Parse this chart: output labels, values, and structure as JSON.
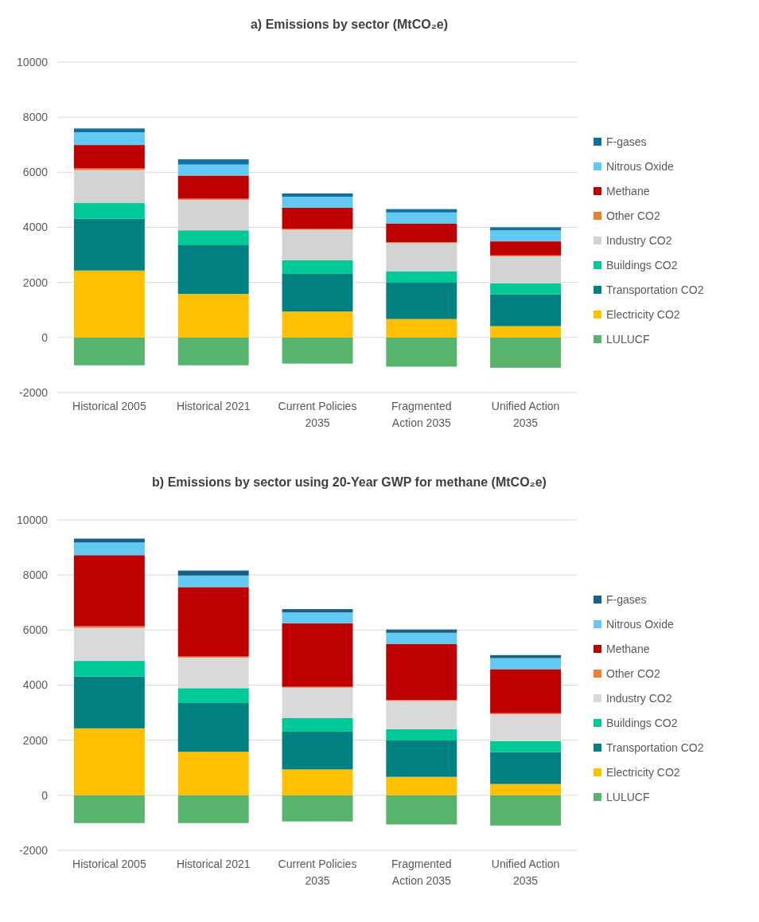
{
  "chart_data": [
    {
      "type": "bar",
      "title": "a) Emissions by sector (MtCO₂e)",
      "stacked": true,
      "grid": "y",
      "legend": "right",
      "categories": [
        "Historical 2005",
        "Historical 2021",
        "Current Policies 2035",
        "Fragmented Action 2035",
        "Unified Action 2035"
      ],
      "ylim": [
        -2000,
        10000
      ],
      "yticks": [
        -2000,
        0,
        2000,
        4000,
        6000,
        8000,
        10000
      ],
      "series": [
        {
          "name": "LULUCF",
          "color": "#58b36c",
          "values": [
            -1010,
            -1010,
            -950,
            -1060,
            -1100
          ]
        },
        {
          "name": "Electricity CO2",
          "color": "#ffc000",
          "values": [
            2430,
            1580,
            940,
            670,
            410
          ]
        },
        {
          "name": "Transportation CO2",
          "color": "#008080",
          "values": [
            1880,
            1770,
            1370,
            1320,
            1160
          ]
        },
        {
          "name": "Buildings CO2",
          "color": "#00c997",
          "values": [
            570,
            540,
            490,
            410,
            400
          ]
        },
        {
          "name": "Industry CO2",
          "color": "#d3d3d3",
          "values": [
            1200,
            1110,
            1110,
            1030,
            980
          ]
        },
        {
          "name": "Other CO2",
          "color": "#ed7d31",
          "values": [
            60,
            40,
            30,
            30,
            30
          ]
        },
        {
          "name": "Methane",
          "color": "#c00000",
          "values": [
            850,
            840,
            770,
            680,
            510
          ]
        },
        {
          "name": "Nitrous Oxide",
          "color": "#62c9f2",
          "values": [
            460,
            400,
            400,
            400,
            400
          ]
        },
        {
          "name": "F-gases",
          "color": "#1170a0",
          "values": [
            140,
            190,
            120,
            120,
            110
          ]
        }
      ]
    },
    {
      "type": "bar",
      "title": "b) Emissions by sector using 20-Year GWP for methane (MtCO₂e)",
      "stacked": true,
      "grid": "y",
      "legend": "right",
      "categories": [
        "Historical 2005",
        "Historical 2021",
        "Current Policies 2035",
        "Fragmented Action 2035",
        "Unified Action 2035"
      ],
      "ylim": [
        -2000,
        10000
      ],
      "yticks": [
        -2000,
        0,
        2000,
        4000,
        6000,
        8000,
        10000
      ],
      "series": [
        {
          "name": "LULUCF",
          "color": "#58b36c",
          "values": [
            -1010,
            -1010,
            -950,
            -1060,
            -1100
          ]
        },
        {
          "name": "Electricity CO2",
          "color": "#ffc000",
          "values": [
            2430,
            1580,
            940,
            670,
            410
          ]
        },
        {
          "name": "Transportation CO2",
          "color": "#008080",
          "values": [
            1880,
            1770,
            1370,
            1320,
            1160
          ]
        },
        {
          "name": "Buildings CO2",
          "color": "#00c997",
          "values": [
            570,
            540,
            490,
            410,
            400
          ]
        },
        {
          "name": "Industry CO2",
          "color": "#d9d9d9",
          "values": [
            1200,
            1110,
            1110,
            1030,
            980
          ]
        },
        {
          "name": "Other CO2",
          "color": "#ed7d31",
          "values": [
            60,
            40,
            30,
            30,
            30
          ]
        },
        {
          "name": "Methane",
          "color": "#c00000",
          "values": [
            2580,
            2520,
            2300,
            2040,
            1600
          ]
        },
        {
          "name": "Nitrous Oxide",
          "color": "#62c9f2",
          "values": [
            460,
            420,
            400,
            400,
            400
          ]
        },
        {
          "name": "F-gases",
          "color": "#1a5f86",
          "values": [
            140,
            180,
            120,
            120,
            110
          ]
        }
      ]
    }
  ]
}
